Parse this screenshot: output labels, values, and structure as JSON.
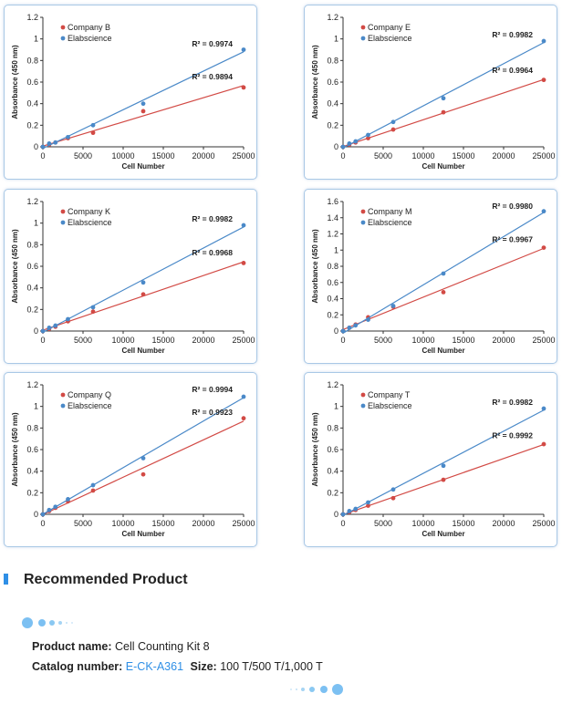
{
  "colors": {
    "red": "#d24a45",
    "blue": "#4a89c8"
  },
  "charts": [
    {
      "id": "b",
      "competitor": "Company B",
      "reference": "Elabscience",
      "ylim": [
        0,
        1.2
      ],
      "yticks": [
        "0",
        "0.2",
        "0.4",
        "0.6",
        "0.8",
        "1",
        "1.2"
      ],
      "xlim": [
        0,
        25000
      ],
      "xticks": [
        "0",
        "5000",
        "10000",
        "15000",
        "20000",
        "25000"
      ],
      "xlabel": "Cell Number",
      "ylabel": "Absorbance (450 nm)",
      "r2_competitor": "R² = 0.9894",
      "r2_reference": "R² = 0.9974",
      "x": [
        0,
        781,
        1563,
        3125,
        6250,
        12500,
        25000
      ],
      "series": [
        {
          "name": "Company B",
          "color": "red",
          "values": [
            0,
            0.02,
            0.04,
            0.08,
            0.13,
            0.33,
            0.55
          ]
        },
        {
          "name": "Elabscience",
          "color": "blue",
          "values": [
            0,
            0.03,
            0.04,
            0.09,
            0.2,
            0.4,
            0.9
          ]
        }
      ]
    },
    {
      "id": "e",
      "competitor": "Company E",
      "reference": "Elabscience",
      "ylim": [
        0,
        1.2
      ],
      "yticks": [
        "0",
        "0.2",
        "0.4",
        "0.6",
        "0.8",
        "1",
        "1.2"
      ],
      "xlim": [
        0,
        25000
      ],
      "xticks": [
        "0",
        "5000",
        "10000",
        "15000",
        "20000",
        "25000"
      ],
      "xlabel": "Cell Number",
      "ylabel": "Absorbance (450 nm)",
      "r2_competitor": "R² = 0.9964",
      "r2_reference": "R² = 0.9982",
      "x": [
        0,
        781,
        1563,
        3125,
        6250,
        12500,
        25000
      ],
      "series": [
        {
          "name": "Company E",
          "color": "red",
          "values": [
            0,
            0.02,
            0.04,
            0.08,
            0.16,
            0.32,
            0.62
          ]
        },
        {
          "name": "Elabscience",
          "color": "blue",
          "values": [
            0,
            0.03,
            0.05,
            0.11,
            0.23,
            0.45,
            0.98
          ]
        }
      ]
    },
    {
      "id": "k",
      "competitor": "Company K",
      "reference": "Elabscience",
      "ylim": [
        0,
        1.2
      ],
      "yticks": [
        "0",
        "0.2",
        "0.4",
        "0.6",
        "0.8",
        "1",
        "1.2"
      ],
      "xlim": [
        0,
        25000
      ],
      "xticks": [
        "0",
        "5000",
        "10000",
        "15000",
        "20000",
        "25000"
      ],
      "xlabel": "Cell Number",
      "ylabel": "Absorbance (450 nm)",
      "r2_competitor": "R² = 0.9968",
      "r2_reference": "R² = 0.9982",
      "x": [
        0,
        781,
        1563,
        3125,
        6250,
        12500,
        25000
      ],
      "series": [
        {
          "name": "Company K",
          "color": "red",
          "values": [
            0,
            0.02,
            0.04,
            0.09,
            0.18,
            0.34,
            0.63
          ]
        },
        {
          "name": "Elabscience",
          "color": "blue",
          "values": [
            0,
            0.03,
            0.05,
            0.11,
            0.22,
            0.45,
            0.98
          ]
        }
      ]
    },
    {
      "id": "m",
      "competitor": "Company M",
      "reference": "Elabscience",
      "ylim": [
        0,
        1.6
      ],
      "yticks": [
        "0",
        "0.2",
        "0.4",
        "0.6",
        "0.8",
        "1",
        "1.2",
        "1.4",
        "1.6"
      ],
      "xlim": [
        0,
        25000
      ],
      "xticks": [
        "0",
        "5000",
        "10000",
        "15000",
        "20000",
        "25000"
      ],
      "xlabel": "Cell Number",
      "ylabel": "Absorbance (450 nm)",
      "r2_competitor": "R² = 0.9967",
      "r2_reference": "R² = 0.9980",
      "x": [
        0,
        781,
        1563,
        3125,
        6250,
        12500,
        25000
      ],
      "series": [
        {
          "name": "Company M",
          "color": "red",
          "values": [
            0,
            0.04,
            0.08,
            0.17,
            0.3,
            0.48,
            1.03
          ]
        },
        {
          "name": "Elabscience",
          "color": "blue",
          "values": [
            0,
            0.04,
            0.07,
            0.14,
            0.31,
            0.71,
            1.48
          ]
        }
      ]
    },
    {
      "id": "q",
      "competitor": "Company Q",
      "reference": "Elabscience",
      "ylim": [
        0,
        1.2
      ],
      "yticks": [
        "0",
        "0.2",
        "0.4",
        "0.6",
        "0.8",
        "1",
        "1.2"
      ],
      "xlim": [
        0,
        25000
      ],
      "xticks": [
        "0",
        "5000",
        "10000",
        "15000",
        "20000",
        "25000"
      ],
      "xlabel": "Cell Number",
      "ylabel": "Absorbance (450 nm)",
      "r2_competitor": "R² = 0.9923",
      "r2_reference": "R² = 0.9994",
      "x": [
        0,
        781,
        1563,
        3125,
        6250,
        12500,
        25000
      ],
      "series": [
        {
          "name": "Company Q",
          "color": "red",
          "values": [
            0,
            0.03,
            0.06,
            0.12,
            0.22,
            0.37,
            0.89
          ]
        },
        {
          "name": "Elabscience",
          "color": "blue",
          "values": [
            0,
            0.04,
            0.07,
            0.14,
            0.27,
            0.52,
            1.09
          ]
        }
      ]
    },
    {
      "id": "t",
      "competitor": "Company T",
      "reference": "Elabscience",
      "ylim": [
        0,
        1.2
      ],
      "yticks": [
        "0",
        "0.2",
        "0.4",
        "0.6",
        "0.8",
        "1",
        "1.2"
      ],
      "xlim": [
        0,
        25000
      ],
      "xticks": [
        "0",
        "5000",
        "10000",
        "15000",
        "20000",
        "25000"
      ],
      "xlabel": "Cell Number",
      "ylabel": "Absorbance (450 nm)",
      "r2_competitor": "R² = 0.9992",
      "r2_reference": "R² = 0.9982",
      "x": [
        0,
        781,
        1563,
        3125,
        6250,
        12500,
        25000
      ],
      "series": [
        {
          "name": "Company T",
          "color": "red",
          "values": [
            0,
            0.02,
            0.04,
            0.08,
            0.15,
            0.32,
            0.65
          ]
        },
        {
          "name": "Elabscience",
          "color": "blue",
          "values": [
            0,
            0.03,
            0.05,
            0.11,
            0.23,
            0.45,
            0.98
          ]
        }
      ]
    }
  ],
  "chart_data": [
    {
      "type": "scatter",
      "categories": [],
      "x": [
        0,
        781,
        1563,
        3125,
        6250,
        12500,
        25000
      ],
      "xlabel": "Cell Number",
      "ylabel": "Absorbance (450 nm)",
      "ylim": [
        0,
        1.2
      ],
      "xlim": [
        0,
        25000
      ],
      "legend": "top-left",
      "series": [
        {
          "name": "Company B",
          "values": [
            0,
            0.02,
            0.04,
            0.08,
            0.13,
            0.33,
            0.55
          ]
        },
        {
          "name": "Elabscience",
          "values": [
            0,
            0.03,
            0.04,
            0.09,
            0.2,
            0.4,
            0.9
          ]
        }
      ]
    },
    {
      "type": "scatter",
      "x": [
        0,
        781,
        1563,
        3125,
        6250,
        12500,
        25000
      ],
      "xlabel": "Cell Number",
      "ylabel": "Absorbance (450 nm)",
      "ylim": [
        0,
        1.2
      ],
      "xlim": [
        0,
        25000
      ],
      "legend": "top-left",
      "series": [
        {
          "name": "Company E",
          "values": [
            0,
            0.02,
            0.04,
            0.08,
            0.16,
            0.32,
            0.62
          ]
        },
        {
          "name": "Elabscience",
          "values": [
            0,
            0.03,
            0.05,
            0.11,
            0.23,
            0.45,
            0.98
          ]
        }
      ]
    },
    {
      "type": "scatter",
      "x": [
        0,
        781,
        1563,
        3125,
        6250,
        12500,
        25000
      ],
      "xlabel": "Cell Number",
      "ylabel": "Absorbance (450 nm)",
      "ylim": [
        0,
        1.2
      ],
      "xlim": [
        0,
        25000
      ],
      "legend": "top-left",
      "series": [
        {
          "name": "Company K",
          "values": [
            0,
            0.02,
            0.04,
            0.09,
            0.18,
            0.34,
            0.63
          ]
        },
        {
          "name": "Elabscience",
          "values": [
            0,
            0.03,
            0.05,
            0.11,
            0.22,
            0.45,
            0.98
          ]
        }
      ]
    },
    {
      "type": "scatter",
      "x": [
        0,
        781,
        1563,
        3125,
        6250,
        12500,
        25000
      ],
      "xlabel": "Cell Number",
      "ylabel": "Absorbance (450 nm)",
      "ylim": [
        0,
        1.6
      ],
      "xlim": [
        0,
        25000
      ],
      "legend": "top-left",
      "series": [
        {
          "name": "Company M",
          "values": [
            0,
            0.04,
            0.08,
            0.17,
            0.3,
            0.48,
            1.03
          ]
        },
        {
          "name": "Elabscience",
          "values": [
            0,
            0.04,
            0.07,
            0.14,
            0.31,
            0.71,
            1.48
          ]
        }
      ]
    },
    {
      "type": "scatter",
      "x": [
        0,
        781,
        1563,
        3125,
        6250,
        12500,
        25000
      ],
      "xlabel": "Cell Number",
      "ylabel": "Absorbance (450 nm)",
      "ylim": [
        0,
        1.2
      ],
      "xlim": [
        0,
        25000
      ],
      "legend": "top-left",
      "series": [
        {
          "name": "Company Q",
          "values": [
            0,
            0.03,
            0.06,
            0.12,
            0.22,
            0.37,
            0.89
          ]
        },
        {
          "name": "Elabscience",
          "values": [
            0,
            0.04,
            0.07,
            0.14,
            0.27,
            0.52,
            1.09
          ]
        }
      ]
    },
    {
      "type": "scatter",
      "x": [
        0,
        781,
        1563,
        3125,
        6250,
        12500,
        25000
      ],
      "xlabel": "Cell Number",
      "ylabel": "Absorbance (450 nm)",
      "ylim": [
        0,
        1.2
      ],
      "xlim": [
        0,
        25000
      ],
      "legend": "top-left",
      "series": [
        {
          "name": "Company T",
          "values": [
            0,
            0.02,
            0.04,
            0.08,
            0.15,
            0.32,
            0.65
          ]
        },
        {
          "name": "Elabscience",
          "values": [
            0,
            0.03,
            0.05,
            0.11,
            0.23,
            0.45,
            0.98
          ]
        }
      ]
    }
  ],
  "recommended": {
    "title": "Recommended Product",
    "product_label": "Product name:",
    "product_value": "Cell Counting Kit 8",
    "catalog_label": "Catalog number:",
    "catalog_value": "E-CK-A361",
    "size_label": "Size:",
    "size_value": "100 T/500 T/1,000 T"
  }
}
